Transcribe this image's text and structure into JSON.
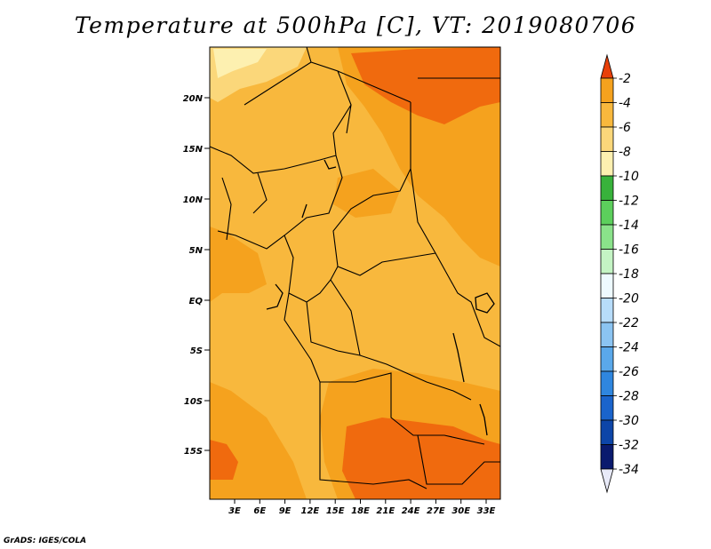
{
  "title": "Temperature at 500hPa [C], VT: 2019080706",
  "credit": "GrADS: IGES/COLA",
  "map": {
    "lat_labels": [
      "20N",
      "15N",
      "10N",
      "5N",
      "EQ",
      "5S",
      "10S",
      "15S"
    ],
    "lon_labels": [
      "3E",
      "6E",
      "9E",
      "12E",
      "15E",
      "18E",
      "21E",
      "24E",
      "27E",
      "30E",
      "33E"
    ],
    "colors": {
      "warm_dark": "#f06a0e",
      "warm": "#f5a21e",
      "mid": "#f8b83d",
      "light": "#fbd77a",
      "pale": "#fdf0b0",
      "border": "#000000"
    }
  },
  "colorbar": {
    "labels": [
      "-2",
      "-4",
      "-6",
      "-8",
      "-10",
      "-12",
      "-14",
      "-16",
      "-18",
      "-20",
      "-22",
      "-24",
      "-26",
      "-28",
      "-30",
      "-32",
      "-34"
    ],
    "colors": [
      "#f05e0b",
      "#f5a21e",
      "#f8b83d",
      "#fbd77a",
      "#fdf0b0",
      "#38b23b",
      "#5ccf5c",
      "#8ae28a",
      "#c4f4c4",
      "#eefaff",
      "#b7dcfa",
      "#8bc4f2",
      "#5aa8ea",
      "#2f86df",
      "#1a64cc",
      "#0d45a8",
      "#0a1a6e"
    ],
    "top_arrow_color": "#e8400a",
    "bottom_arrow_color": "#e8eaf8"
  }
}
